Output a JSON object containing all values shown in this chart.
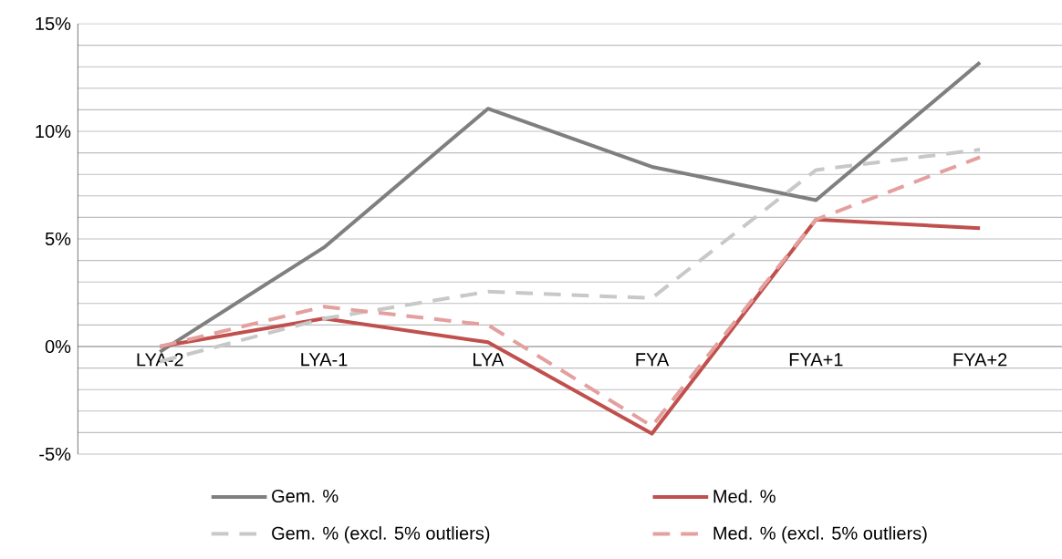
{
  "chart_data": {
    "type": "line",
    "categories": [
      "LYA-2",
      "LYA-1",
      "LYA",
      "FYA",
      "FYA+1",
      "FYA+2"
    ],
    "series": [
      {
        "name": "Gem. %",
        "color": "#7f7f7f",
        "line_style": "solid",
        "values": [
          -0.25,
          4.6,
          11.05,
          8.35,
          6.8,
          13.2
        ]
      },
      {
        "name": "Med. %",
        "color": "#c0504d",
        "line_style": "solid",
        "values": [
          0.0,
          1.3,
          0.2,
          -4.05,
          5.9,
          5.5
        ]
      },
      {
        "name": "Gem. % (excl. 5% outliers)",
        "color": "#c8c8c8",
        "line_style": "dashed",
        "values": [
          -0.7,
          1.3,
          2.55,
          2.25,
          8.2,
          9.15
        ]
      },
      {
        "name": "Med. %  (excl. 5% outliers)",
        "color": "#e3a09e",
        "line_style": "dashed",
        "values": [
          0.0,
          1.85,
          1.0,
          -3.7,
          5.9,
          8.8
        ]
      }
    ],
    "ylim": [
      -5,
      15
    ],
    "yticks": [
      {
        "value": -5,
        "label": "-5%"
      },
      {
        "value": -4,
        "label": null
      },
      {
        "value": -3,
        "label": null
      },
      {
        "value": -2,
        "label": null
      },
      {
        "value": -1,
        "label": null
      },
      {
        "value": 0,
        "label": "0%"
      },
      {
        "value": 1,
        "label": null
      },
      {
        "value": 2,
        "label": null
      },
      {
        "value": 3,
        "label": null
      },
      {
        "value": 4,
        "label": null
      },
      {
        "value": 5,
        "label": "5%"
      },
      {
        "value": 6,
        "label": null
      },
      {
        "value": 7,
        "label": null
      },
      {
        "value": 8,
        "label": null
      },
      {
        "value": 9,
        "label": null
      },
      {
        "value": 10,
        "label": "10%"
      },
      {
        "value": 11,
        "label": null
      },
      {
        "value": 12,
        "label": null
      },
      {
        "value": 13,
        "label": null
      },
      {
        "value": 14,
        "label": null
      },
      {
        "value": 15,
        "label": "15%"
      }
    ],
    "grid": "y",
    "legend": "bottom",
    "marker": "none"
  }
}
